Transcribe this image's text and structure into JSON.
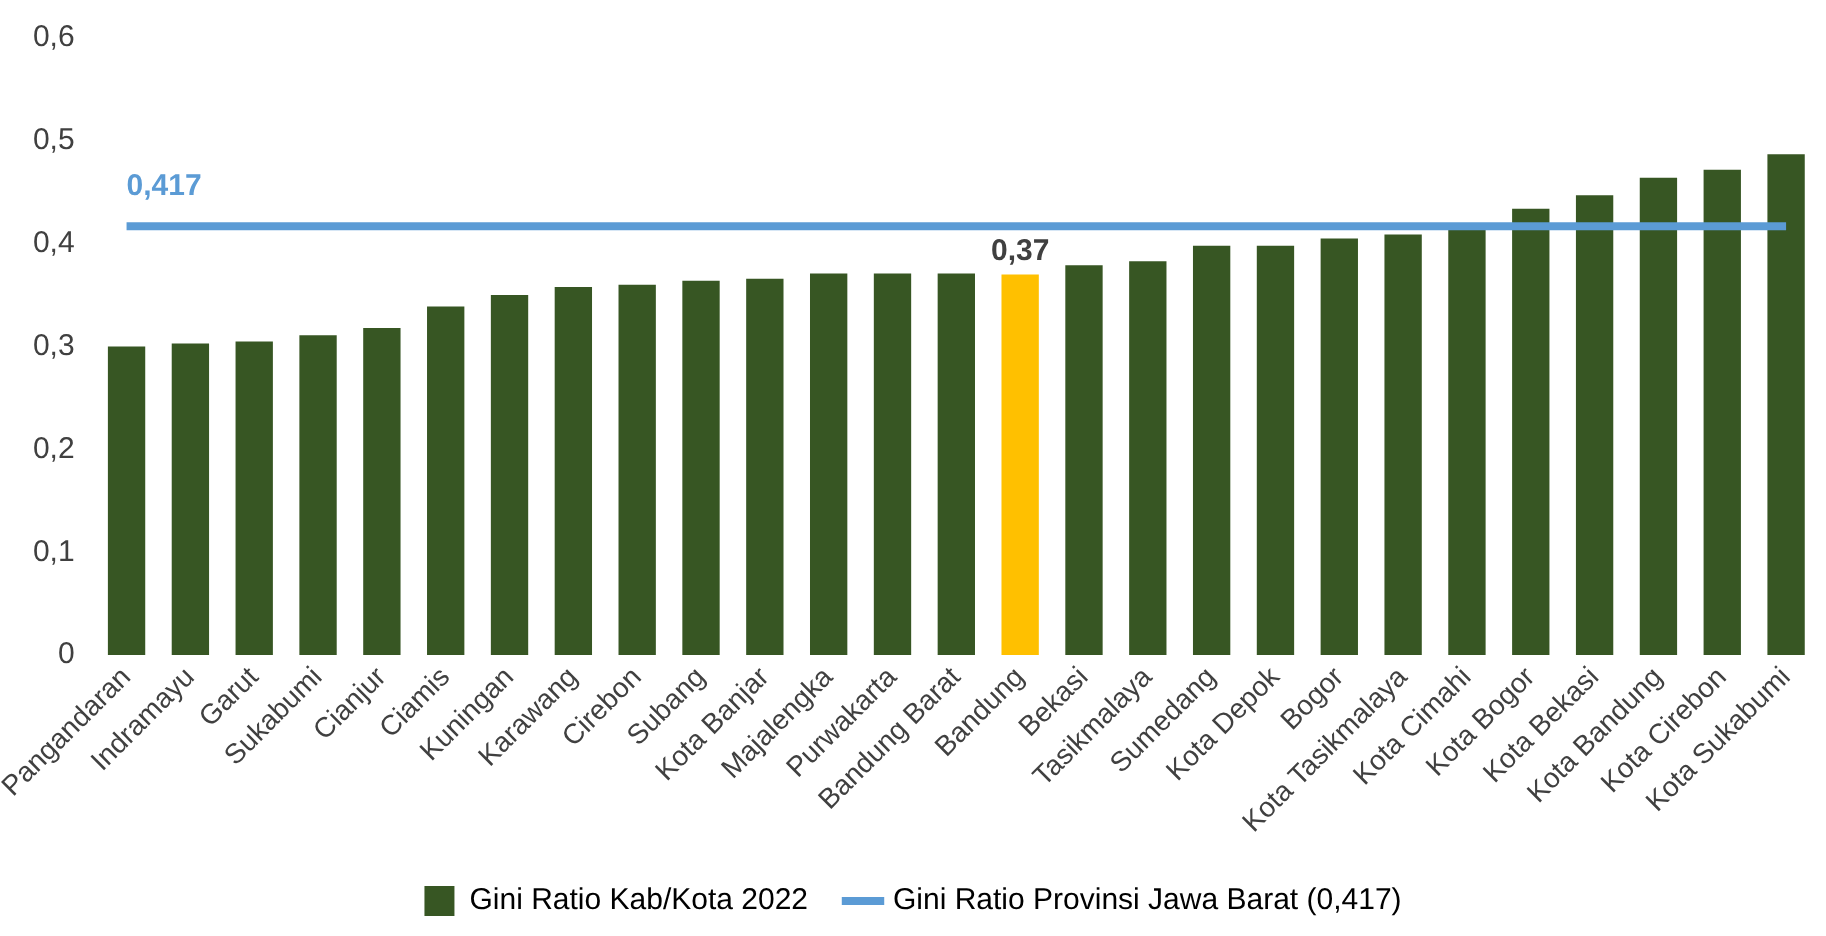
{
  "chart_data": {
    "type": "bar",
    "categories": [
      "Pangandaran",
      "Indramayu",
      "Garut",
      "Sukabumi",
      "Cianjur",
      "Ciamis",
      "Kuningan",
      "Karawang",
      "Cirebon",
      "Subang",
      "Kota Banjar",
      "Majalengka",
      "Purwakarta",
      "Bandung Barat",
      "Bandung",
      "Bekasi",
      "Tasikmalaya",
      "Sumedang",
      "Kota Depok",
      "Bogor",
      "Kota Tasikmalaya",
      "Kota Cimahi",
      "Kota Bogor",
      "Kota Bekasi",
      "Kota Bandung",
      "Kota Cirebon",
      "Kota Sukabumi"
    ],
    "series": [
      {
        "name": "Gini Ratio Kab/Kota 2022",
        "color": "#375623",
        "colors": [
          "#375623",
          "#375623",
          "#375623",
          "#375623",
          "#375623",
          "#375623",
          "#375623",
          "#375623",
          "#375623",
          "#375623",
          "#375623",
          "#375623",
          "#375623",
          "#375623",
          "#ffc000",
          "#375623",
          "#375623",
          "#375623",
          "#375623",
          "#375623",
          "#375623",
          "#375623",
          "#375623",
          "#375623",
          "#375623",
          "#375623",
          "#375623"
        ],
        "values": [
          0.3,
          0.303,
          0.305,
          0.311,
          0.318,
          0.339,
          0.35,
          0.358,
          0.36,
          0.364,
          0.366,
          0.371,
          0.371,
          0.371,
          0.37,
          0.379,
          0.383,
          0.398,
          0.398,
          0.405,
          0.409,
          0.417,
          0.434,
          0.447,
          0.464,
          0.472,
          0.487
        ],
        "value_labels": [
          null,
          null,
          null,
          null,
          null,
          null,
          null,
          null,
          null,
          null,
          null,
          null,
          null,
          null,
          "0,37",
          null,
          null,
          null,
          null,
          null,
          null,
          null,
          null,
          null,
          null,
          null,
          null
        ]
      },
      {
        "name": "Gini Ratio Provinsi Jawa Barat (0,417)",
        "type": "line",
        "color": "#5b9bd5",
        "values": [
          0.417,
          0.417,
          0.417,
          0.417,
          0.417,
          0.417,
          0.417,
          0.417,
          0.417,
          0.417,
          0.417,
          0.417,
          0.417,
          0.417,
          0.417,
          0.417,
          0.417,
          0.417,
          0.417,
          0.417,
          0.417,
          0.417,
          0.417,
          0.417,
          0.417,
          0.417,
          0.417
        ]
      }
    ],
    "annotations": [
      {
        "text": "0,417",
        "x": "Pangandaran",
        "y": 0.417
      }
    ],
    "ylim": [
      0,
      0.6
    ],
    "yticks": [
      {
        "value": 0,
        "label": "0"
      },
      {
        "value": 0.1,
        "label": "0,1"
      },
      {
        "value": 0.2,
        "label": "0,2"
      },
      {
        "value": 0.3,
        "label": "0,3"
      },
      {
        "value": 0.4,
        "label": "0,4"
      },
      {
        "value": 0.5,
        "label": "0,5"
      },
      {
        "value": 0.6,
        "label": "0,6"
      }
    ],
    "legend": "bottom",
    "marker": "none"
  }
}
